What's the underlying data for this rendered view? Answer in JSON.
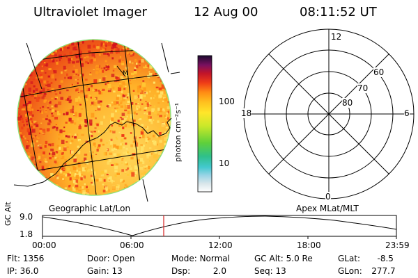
{
  "header": {
    "instrument": "Ultraviolet Imager",
    "date": "12 Aug 00",
    "time": "08:11:52 UT"
  },
  "colorbar": {
    "unit_label": "photon cm⁻²s⁻¹",
    "ticks": [
      "100",
      "10"
    ]
  },
  "polar_plot": {
    "mlt_labels": {
      "top": "12",
      "left": "18",
      "right": "6",
      "bottom": "0"
    },
    "lat_labels": [
      "60",
      "70",
      "80"
    ]
  },
  "image_panel": {
    "coastline_marker": "M"
  },
  "panel_labels": {
    "left": "Geographic Lat/Lon",
    "right": "Apex MLat/MLT"
  },
  "altitude_plot": {
    "ylabel": "GC Alt",
    "y_ticks": [
      "9.0",
      "1.8"
    ],
    "x_ticks": [
      "00:00",
      "06:00",
      "12:00",
      "18:00",
      "23:59"
    ]
  },
  "info": {
    "row1": [
      {
        "label": "Flt:",
        "value": "1356"
      },
      {
        "label": "Door:",
        "value": "Open"
      },
      {
        "label": "Mode:",
        "value": "Normal"
      },
      {
        "label": "GC Alt:",
        "value": "5.0 Re"
      },
      {
        "label": "GLat:",
        "value": "-8.5"
      }
    ],
    "row2": [
      {
        "label": "IP:",
        "value": "36.0"
      },
      {
        "label": "Gain:",
        "value": "13"
      },
      {
        "label": "Dsp:",
        "value": "2.0"
      },
      {
        "label": "Seq:",
        "value": "13"
      },
      {
        "label": "GLon:",
        "value": "277.7"
      }
    ]
  },
  "colors": {
    "cursor": "#d62020",
    "disk_edge": "#8fe07a"
  }
}
